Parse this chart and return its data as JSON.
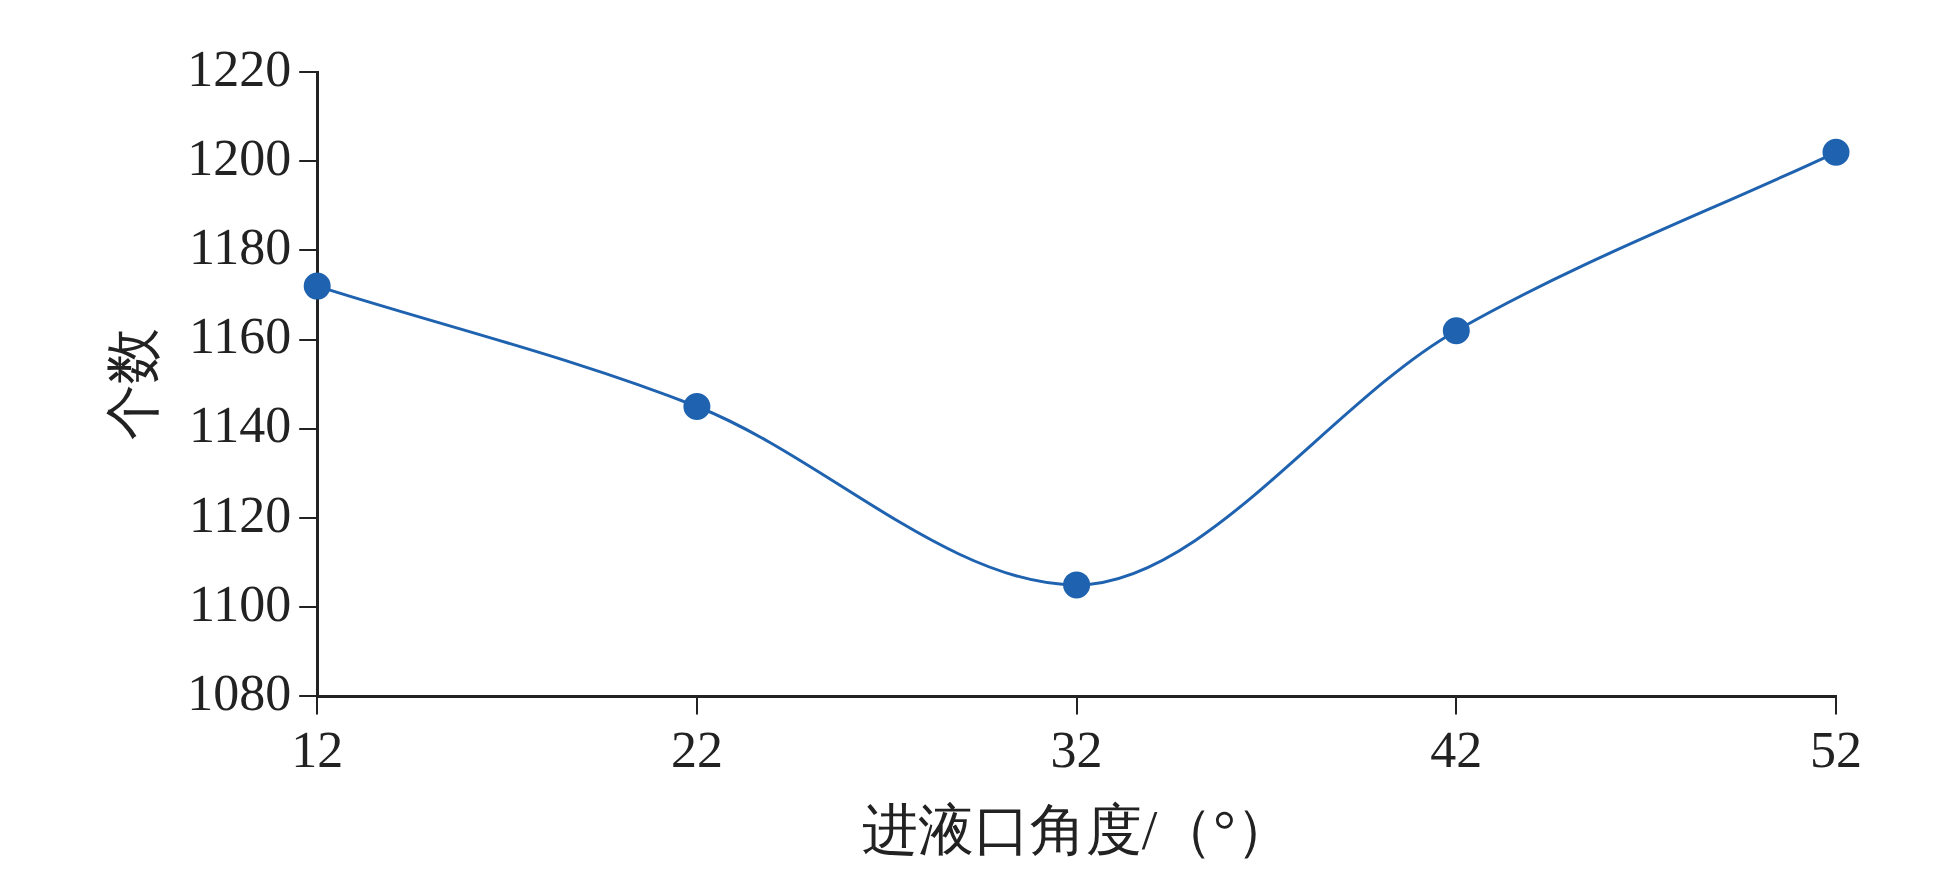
{
  "chart_data": {
    "type": "line",
    "xlabel": "进液口角度/（°）",
    "ylabel": "个数",
    "x": [
      12,
      22,
      32,
      42,
      52
    ],
    "series": [
      {
        "color": "#1f63b0",
        "values": [
          1172,
          1145,
          1105,
          1162,
          1202
        ]
      }
    ],
    "xlim": [
      12,
      52
    ],
    "xticks": [
      12,
      22,
      32,
      42,
      52
    ],
    "ylim": [
      1080,
      1220
    ],
    "yticks": [
      1080,
      1100,
      1120,
      1140,
      1160,
      1180,
      1200,
      1220
    ],
    "grid": false,
    "legend": false,
    "marker": "circle",
    "line_style": "solid"
  }
}
